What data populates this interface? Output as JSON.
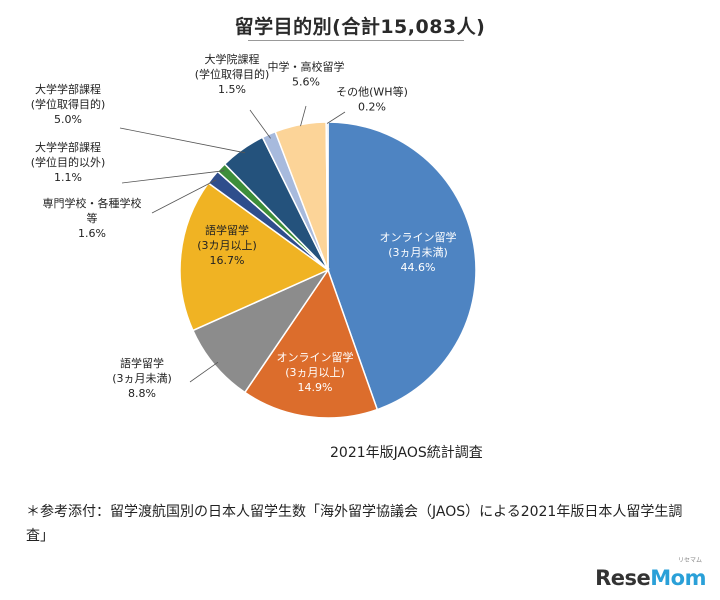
{
  "chart_data": {
    "type": "pie",
    "title": "留学目的別(合計15,083人)",
    "total": 15083,
    "start_angle_deg": 0,
    "direction": "clockwise",
    "slices": [
      {
        "lines": [
          "オンライン留学",
          "(3ヵ月未満)"
        ],
        "percent_label": "44.6%",
        "value": 44.6,
        "color": "#4e84c2"
      },
      {
        "lines": [
          "オンライン留学",
          "(3ヵ月以上)"
        ],
        "percent_label": "14.9%",
        "value": 14.9,
        "color": "#dc6d2c"
      },
      {
        "lines": [
          "語学留学",
          "(3ヵ月未満)"
        ],
        "percent_label": "8.8%",
        "value": 8.8,
        "color": "#8c8c8c"
      },
      {
        "lines": [
          "語学留学",
          "(3カ月以上)"
        ],
        "percent_label": "16.7%",
        "value": 16.7,
        "color": "#f0b323"
      },
      {
        "lines": [
          "専門学校・各種学校",
          "等"
        ],
        "percent_label": "1.6%",
        "value": 1.6,
        "color": "#2f4e8c"
      },
      {
        "lines": [
          "大学学部課程",
          "(学位目的以外)"
        ],
        "percent_label": "1.1%",
        "value": 1.1,
        "color": "#3e8e3a"
      },
      {
        "lines": [
          "大学学部課程",
          "(学位取得目的)"
        ],
        "percent_label": "5.0%",
        "value": 5.0,
        "color": "#24527c"
      },
      {
        "lines": [
          "大学院課程",
          "(学位取得目的)"
        ],
        "percent_label": "1.5%",
        "value": 1.5,
        "color": "#a7badd"
      },
      {
        "lines": [
          "中学・高校留学"
        ],
        "percent_label": "5.6%",
        "value": 5.6,
        "color": "#fcd498"
      },
      {
        "lines": [
          "その他(WH等)"
        ],
        "percent_label": "0.2%",
        "value": 0.2,
        "color": "#cfd9ea"
      }
    ]
  },
  "source_note": "2021年版JAOS統計調査",
  "footnote": "＊参考添付：留学渡航国別の日本人留学生数「海外留学協議会（JAOS）による2021年版日本人留学生調査」",
  "logo": {
    "brand_a": "Rese",
    "brand_b": "Mom",
    "kana": "リセマム"
  }
}
